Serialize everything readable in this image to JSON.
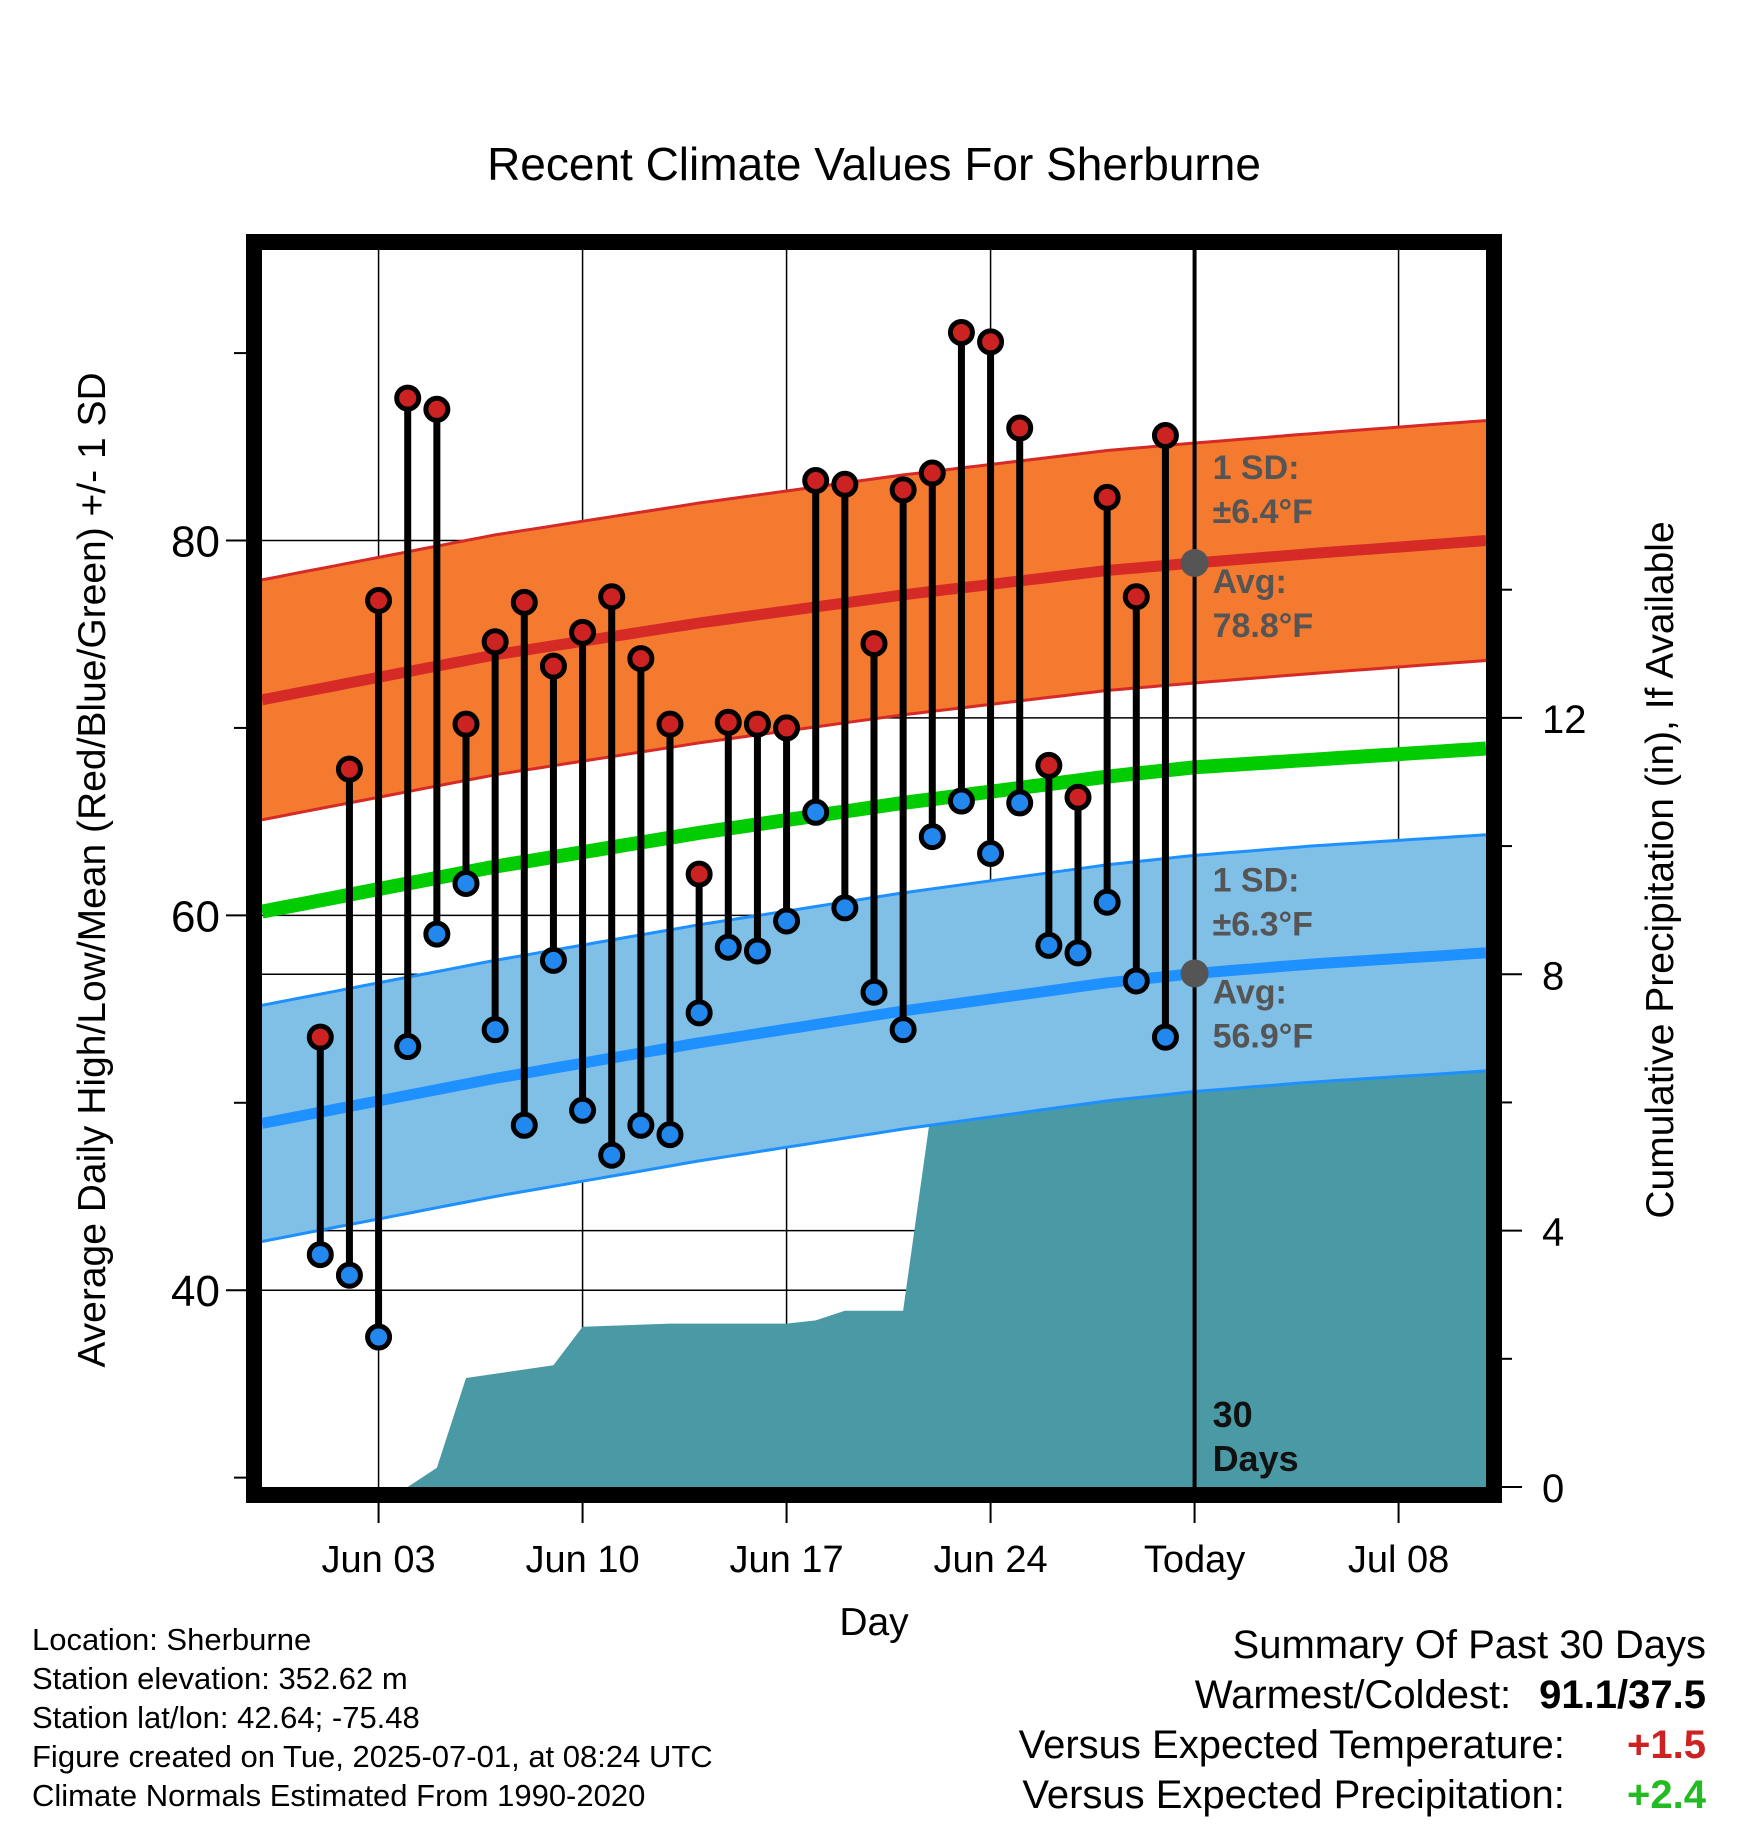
{
  "chart_data": {
    "type": "line",
    "title": "Recent Climate Values For Sherburne",
    "xlabel": "Day",
    "ylabel": "Average Daily High/Low/Mean (Red/Blue/Green) +/- 1 SD",
    "y2label": "Cumulative Precipitation (in), If Available",
    "ylim": [
      29.5,
      95.5
    ],
    "y_ticks": [
      40,
      60,
      80
    ],
    "y2lim": [
      0,
      19.3
    ],
    "y2_ticks": [
      0,
      4,
      8,
      12
    ],
    "xlim": [
      "2025-05-30",
      "2025-07-11"
    ],
    "x_ticks": [
      {
        "date": "2025-06-03",
        "label": "Jun 03"
      },
      {
        "date": "2025-06-10",
        "label": "Jun 10"
      },
      {
        "date": "2025-06-17",
        "label": "Jun 17"
      },
      {
        "date": "2025-06-24",
        "label": "Jun 24"
      },
      {
        "date": "2025-07-01",
        "label": "Today"
      },
      {
        "date": "2025-07-08",
        "label": "Jul 08"
      }
    ],
    "grid": true,
    "today": "2025-07-01",
    "today_label": "30 Days",
    "dates": [
      "2025-06-01",
      "2025-06-02",
      "2025-06-03",
      "2025-06-04",
      "2025-06-05",
      "2025-06-06",
      "2025-06-07",
      "2025-06-08",
      "2025-06-09",
      "2025-06-10",
      "2025-06-11",
      "2025-06-12",
      "2025-06-13",
      "2025-06-14",
      "2025-06-15",
      "2025-06-16",
      "2025-06-17",
      "2025-06-18",
      "2025-06-19",
      "2025-06-20",
      "2025-06-21",
      "2025-06-22",
      "2025-06-23",
      "2025-06-24",
      "2025-06-25",
      "2025-06-26",
      "2025-06-27",
      "2025-06-28",
      "2025-06-29",
      "2025-06-30"
    ],
    "highs": [
      53.5,
      67.8,
      76.8,
      87.6,
      87.0,
      70.2,
      74.6,
      76.7,
      73.3,
      75.1,
      77.0,
      73.7,
      70.2,
      62.2,
      70.3,
      70.2,
      70.0,
      83.2,
      83.0,
      74.5,
      82.7,
      83.6,
      91.1,
      90.6,
      86.0,
      68.0,
      66.3,
      82.3,
      77.0,
      85.6
    ],
    "lows": [
      41.9,
      40.8,
      37.5,
      53.0,
      59.0,
      61.7,
      53.9,
      48.8,
      57.6,
      49.6,
      47.2,
      48.8,
      48.3,
      54.8,
      58.3,
      58.1,
      59.7,
      65.5,
      60.4,
      55.9,
      53.9,
      64.2,
      66.1,
      63.3,
      66.0,
      58.4,
      58.0,
      60.7,
      56.5,
      53.5
    ],
    "normal_high": {
      "x": [
        "2025-05-30",
        "2025-06-07",
        "2025-06-14",
        "2025-06-21",
        "2025-06-28",
        "2025-07-01",
        "2025-07-05",
        "2025-07-11"
      ],
      "avg": [
        71.5,
        73.9,
        75.6,
        77.1,
        78.4,
        78.8,
        79.3,
        80.0
      ],
      "sd": 6.4
    },
    "normal_low": {
      "x": [
        "2025-05-30",
        "2025-06-07",
        "2025-06-14",
        "2025-06-21",
        "2025-06-28",
        "2025-07-01",
        "2025-07-05",
        "2025-07-11"
      ],
      "avg": [
        48.9,
        51.3,
        53.2,
        54.9,
        56.4,
        56.9,
        57.4,
        58.0
      ],
      "sd": 6.3
    },
    "normal_mean": {
      "x": [
        "2025-05-30",
        "2025-06-07",
        "2025-06-14",
        "2025-06-21",
        "2025-06-28",
        "2025-07-01",
        "2025-07-05",
        "2025-07-11"
      ],
      "values": [
        60.2,
        62.6,
        64.4,
        66.0,
        67.4,
        67.9,
        68.3,
        68.9
      ]
    },
    "precip_cumulative": {
      "x": [
        "2025-05-30",
        "2025-06-04",
        "2025-06-05",
        "2025-06-06",
        "2025-06-09",
        "2025-06-10",
        "2025-06-13",
        "2025-06-17",
        "2025-06-18",
        "2025-06-19",
        "2025-06-21",
        "2025-06-22",
        "2025-06-24",
        "2025-06-26",
        "2025-06-29",
        "2025-06-30",
        "2025-07-11"
      ],
      "values": [
        0.0,
        0.0,
        0.3,
        1.7,
        1.9,
        2.5,
        2.55,
        2.55,
        2.6,
        2.75,
        2.75,
        6.0,
        6.0,
        6.7,
        6.7,
        6.9,
        6.9
      ]
    },
    "annotations": {
      "high_sd_label": "1 SD:",
      "high_sd_value": "±6.4°F",
      "high_avg_label": "Avg:",
      "high_avg_value": "78.8°F",
      "low_sd_label": "1 SD:",
      "low_sd_value": "±6.3°F",
      "low_avg_label": "Avg:",
      "low_avg_value": "56.9°F"
    },
    "colors": {
      "high_band": "#f47a30",
      "high_line": "#d62a26",
      "low_band": "#80bfe6",
      "low_line": "#1e90ff",
      "mean_line": "#00cc00",
      "precip": "#4a9aa5",
      "high_dot": "#cc2222",
      "low_dot": "#2288ee",
      "annotation_text": "#555555"
    }
  },
  "info": {
    "location": "Location: Sherburne",
    "elevation": "Station elevation: 352.62 m",
    "latlon": "Station lat/lon: 42.64; -75.48",
    "created": "Figure created on Tue, 2025-07-01, at 08:24 UTC",
    "normals": "Climate Normals Estimated From 1990-2020"
  },
  "summary": {
    "title": "Summary Of Past 30 Days",
    "warm_cold_label": "Warmest/Coldest:",
    "warm_cold_value": "91.1/37.5",
    "temp_label": "Versus Expected Temperature:",
    "temp_value": "+1.5",
    "temp_color": "#cc2222",
    "precip_label": "Versus Expected Precipitation:",
    "precip_value": "+2.4",
    "precip_color": "#22bb22"
  }
}
